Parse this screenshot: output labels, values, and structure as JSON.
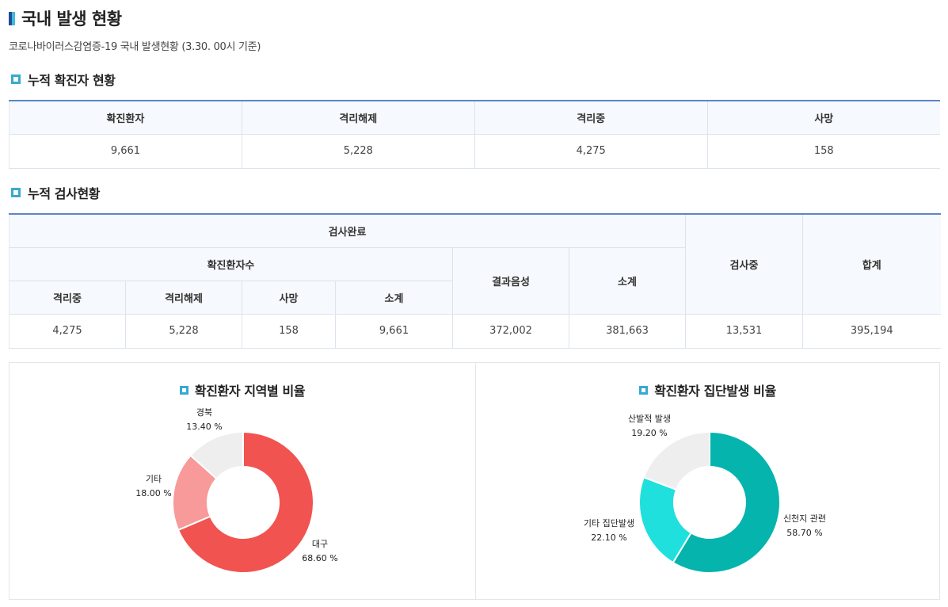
{
  "page": {
    "title": "국내 발생 현황",
    "subtitle": "코로나바이러스감염증-19 국내 발생현황 (3.30. 00시 기준)"
  },
  "sections": {
    "confirmed_title": "누적 확진자 현황",
    "tests_title": "누적 검사현황"
  },
  "confirmed_table": {
    "headers": [
      "확진환자",
      "격리해제",
      "격리중",
      "사망"
    ],
    "values": [
      "9,661",
      "5,228",
      "4,275",
      "158"
    ]
  },
  "tests_table": {
    "group_completed": "검사완료",
    "group_confirmed": "확진환자수",
    "negative": "결과음성",
    "subtotal": "소계",
    "testing": "검사중",
    "total": "합계",
    "sub_headers": [
      "격리중",
      "격리해제",
      "사망",
      "소계"
    ],
    "values": [
      "4,275",
      "5,228",
      "158",
      "9,661",
      "372,002",
      "381,663",
      "13,531",
      "395,194"
    ]
  },
  "chart_data": [
    {
      "type": "pie",
      "title": "확진환자 지역별 비율",
      "slices": [
        {
          "label": "대구",
          "value": 68.6,
          "text": "68.60 %",
          "color": "#f15350"
        },
        {
          "label": "기타",
          "value": 18.0,
          "text": "18.00 %",
          "color": "#f79a99"
        },
        {
          "label": "경북",
          "value": 13.4,
          "text": "13.40 %",
          "color": "#eeeeee"
        }
      ]
    },
    {
      "type": "pie",
      "title": "확진환자 집단발생 비율",
      "slices": [
        {
          "label": "신천지 관련",
          "value": 58.7,
          "text": "58.70 %",
          "color": "#05b4ac"
        },
        {
          "label": "기타 집단발생",
          "value": 22.1,
          "text": "22.10 %",
          "color": "#1fe0dc"
        },
        {
          "label": "산발적 발생",
          "value": 19.2,
          "text": "19.20 %",
          "color": "#eeeeee"
        }
      ]
    }
  ],
  "colors": {
    "table_accent": "#5c86c5",
    "icon": "#37a9d4"
  }
}
